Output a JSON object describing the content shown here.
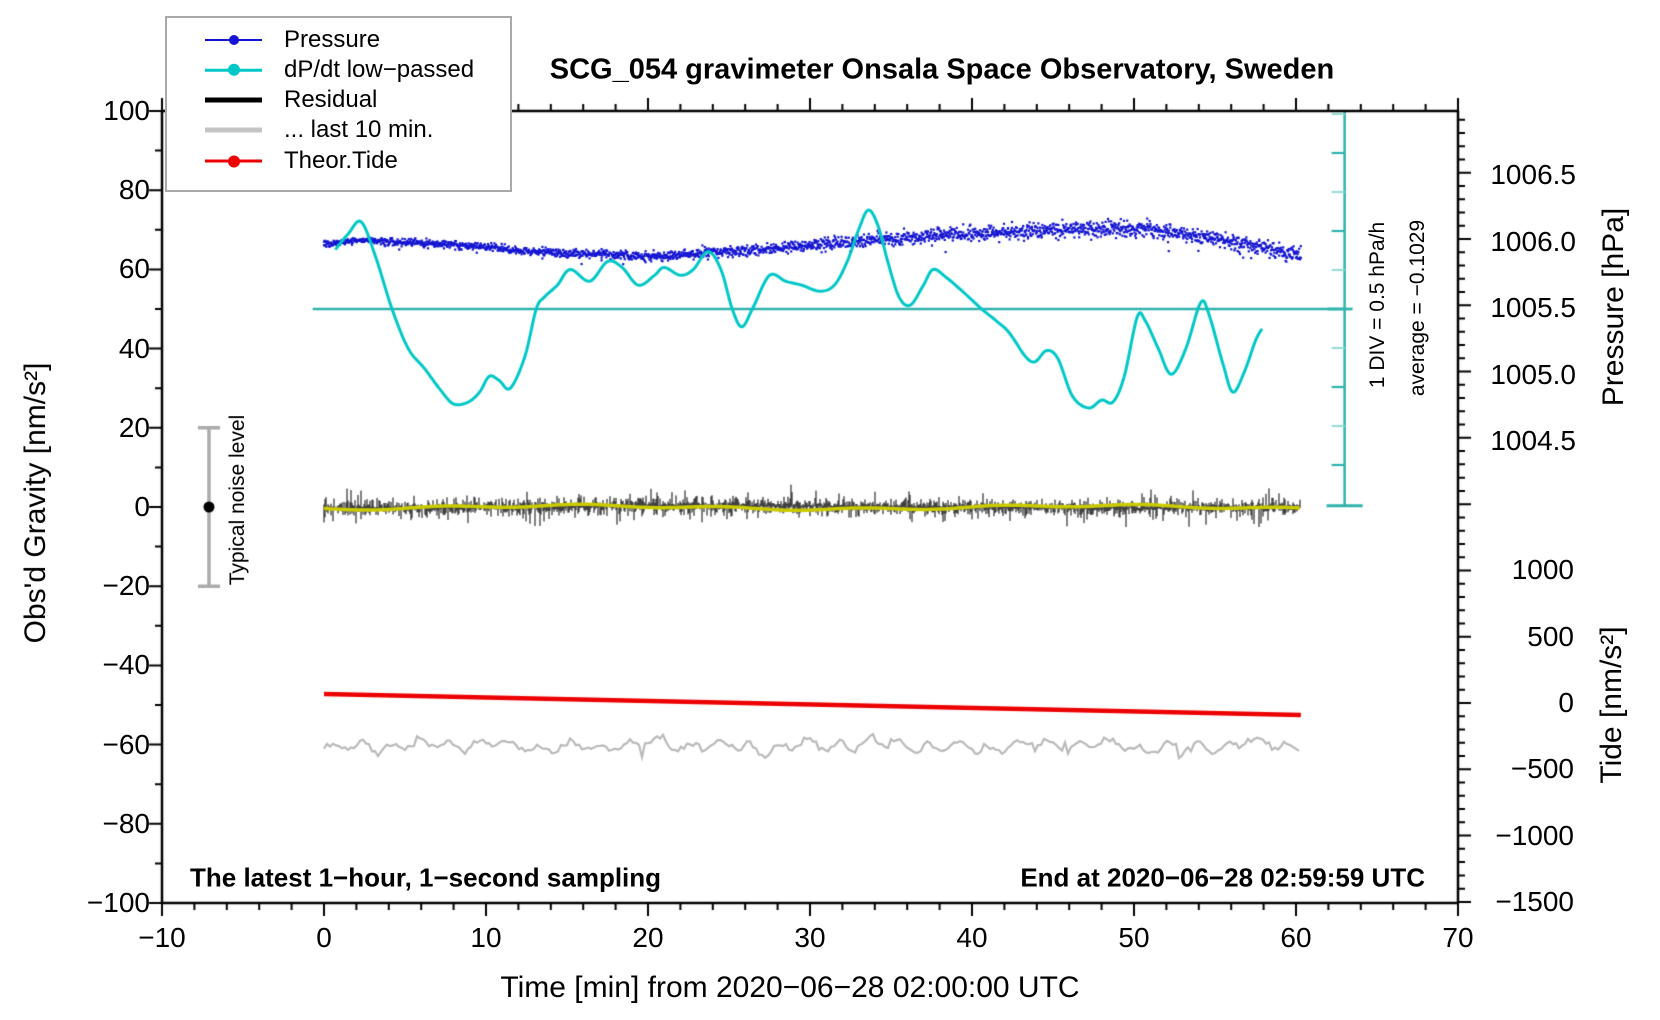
{
  "title": "SCG_054 gravimeter Onsala Space Observatory, Sweden",
  "legend": {
    "items": [
      {
        "label": "Pressure",
        "color": "#1414d2",
        "style": "line-dot",
        "line_width": 2,
        "dot_radius": 5
      },
      {
        "label": "dP/dt low−passed",
        "color": "#00c7c7",
        "style": "line-dot",
        "line_width": 2.5,
        "dot_radius": 6
      },
      {
        "label": "Residual",
        "color": "#000000",
        "style": "line",
        "line_width": 5,
        "dot_radius": 0
      },
      {
        "label": "... last 10 min.",
        "color": "#c4c4c4",
        "style": "line",
        "line_width": 5,
        "dot_radius": 0
      },
      {
        "label": "Theor.Tide",
        "color": "#ec0000",
        "style": "line-dot",
        "line_width": 3,
        "dot_radius": 6
      }
    ]
  },
  "annotations": {
    "noise_bar_label": "Typical noise level",
    "div_scale_label": "1 DIV = 0.5 hPa/h",
    "average_label": "average = −0.1029",
    "sampling_note": "The latest 1−hour, 1−second sampling",
    "end_time_note": "End at 2020−06−28 02:59:59 UTC"
  },
  "chart_data": {
    "type": "line",
    "title": "SCG_054 gravimeter Onsala Space Observatory, Sweden",
    "grid": false,
    "legend_position": "top-left",
    "x_axis": {
      "label": "Time [min] from 2020−06−28 02:00:00 UTC",
      "range": [
        -10,
        70
      ],
      "major_ticks": [
        -10,
        0,
        10,
        20,
        30,
        40,
        50,
        60,
        70
      ],
      "minor_step": 2
    },
    "y_left_axis": {
      "label": "Obs'd Gravity [nm/s²]",
      "range": [
        -100,
        100
      ],
      "major_ticks": [
        100,
        80,
        60,
        40,
        20,
        0,
        -20,
        -40,
        -60,
        -80,
        -100
      ],
      "minor_step": 10
    },
    "y_right_pressure_axis": {
      "label": "Pressure [hPa]",
      "tick_labels": [
        "1006.5",
        "1006.0",
        "1005.5",
        "1005.0",
        "1004.5"
      ],
      "tick_values": [
        1006.5,
        1006.0,
        1005.5,
        1005.0,
        1004.5
      ],
      "minor_step_hpa": 0.1,
      "map_to_gravity": {
        "gravity_at_1006_hpa": 67.0,
        "gravity_units_per_hpa": 33.55
      }
    },
    "y_right_tide_axis": {
      "label": "Tide [nm/s²]",
      "tick_values": [
        1000,
        500,
        0,
        -500,
        -1000,
        -1500
      ],
      "minor_step": 100,
      "map_to_gravity": {
        "gravity_at_zero_tide": -49.5,
        "gravity_units_per_tide_unit": 0.03348
      }
    },
    "div_scale": {
      "label": "1 DIV = 0.5 hPa/h",
      "average_label": "average = −0.1029",
      "average_hpa_per_h": -0.1029,
      "line_x_time_min": 63.0,
      "average_line_gravity": 50,
      "average_line_start_time_min": -0.7,
      "div_height_gravity_units": 9.85
    },
    "noise_bar": {
      "label": "Typical noise level",
      "x_time_min": -7.1,
      "center_gravity": 0,
      "half_range_gravity": 20
    },
    "series": {
      "pressure": {
        "name": "Pressure",
        "units": "hPa",
        "style": "noisy-scatter",
        "median_points": [
          [
            0,
            1005.98
          ],
          [
            1,
            1005.99
          ],
          [
            2,
            1006.01
          ],
          [
            3,
            1006.01
          ],
          [
            4,
            1006.0
          ],
          [
            6,
            1005.99
          ],
          [
            8,
            1005.98
          ],
          [
            10,
            1005.96
          ],
          [
            12,
            1005.93
          ],
          [
            14,
            1005.92
          ],
          [
            16,
            1005.91
          ],
          [
            18,
            1005.9
          ],
          [
            20,
            1005.89
          ],
          [
            22,
            1005.9
          ],
          [
            24,
            1005.92
          ],
          [
            26,
            1005.93
          ],
          [
            28,
            1005.95
          ],
          [
            30,
            1005.97
          ],
          [
            32,
            1005.99
          ],
          [
            34,
            1006.01
          ],
          [
            36,
            1006.03
          ],
          [
            38,
            1006.05
          ],
          [
            40,
            1006.06
          ],
          [
            42,
            1006.07
          ],
          [
            44,
            1006.08
          ],
          [
            46,
            1006.09
          ],
          [
            48,
            1006.1
          ],
          [
            50,
            1006.1
          ],
          [
            52,
            1006.08
          ],
          [
            54,
            1006.04
          ],
          [
            56,
            1006.0
          ],
          [
            57,
            1005.97
          ],
          [
            58,
            1005.95
          ],
          [
            59,
            1005.93
          ],
          [
            60.3,
            1005.9
          ]
        ],
        "noise_sigma_hpa": [
          [
            0,
            0.012
          ],
          [
            20,
            0.016
          ],
          [
            30,
            0.022
          ],
          [
            45,
            0.028
          ],
          [
            60.3,
            0.03
          ]
        ]
      },
      "dpdt_lowpassed": {
        "name": "dP/dt low−passed",
        "units": "gravity-scale (1 DIV = 0.5 hPa/h, average = -0.1029 hPa/h at level 50)",
        "points": [
          [
            0.7,
            65
          ],
          [
            1.5,
            69
          ],
          [
            2.3,
            72
          ],
          [
            3.2,
            63
          ],
          [
            4.2,
            50
          ],
          [
            5.2,
            40
          ],
          [
            6.2,
            35
          ],
          [
            7.2,
            29.5
          ],
          [
            8.0,
            26
          ],
          [
            8.9,
            26.5
          ],
          [
            9.6,
            29
          ],
          [
            10.2,
            33
          ],
          [
            10.8,
            32
          ],
          [
            11.5,
            30
          ],
          [
            12.4,
            38
          ],
          [
            13.1,
            50
          ],
          [
            13.6,
            53
          ],
          [
            14.4,
            56
          ],
          [
            15.2,
            60
          ],
          [
            16.4,
            57
          ],
          [
            17.5,
            62
          ],
          [
            18.4,
            60.5
          ],
          [
            19.4,
            56
          ],
          [
            20.4,
            58.5
          ],
          [
            21.0,
            60.5
          ],
          [
            22.0,
            58.5
          ],
          [
            22.8,
            60
          ],
          [
            23.7,
            64.5
          ],
          [
            24.5,
            60
          ],
          [
            25.2,
            50
          ],
          [
            25.8,
            45.5
          ],
          [
            26.5,
            50.5
          ],
          [
            27.5,
            58.5
          ],
          [
            28.5,
            57
          ],
          [
            29.5,
            56
          ],
          [
            30.6,
            54.5
          ],
          [
            31.5,
            56
          ],
          [
            32.3,
            62
          ],
          [
            33.0,
            70
          ],
          [
            33.6,
            75
          ],
          [
            34.2,
            71
          ],
          [
            34.8,
            62
          ],
          [
            35.5,
            53
          ],
          [
            36.2,
            51
          ],
          [
            37.0,
            56
          ],
          [
            37.6,
            60
          ],
          [
            38.4,
            58
          ],
          [
            39.4,
            54.5
          ],
          [
            40.6,
            50
          ],
          [
            41.5,
            47
          ],
          [
            42.3,
            44
          ],
          [
            43.3,
            38
          ],
          [
            43.9,
            36.7
          ],
          [
            44.6,
            39.5
          ],
          [
            45.3,
            37.5
          ],
          [
            46.2,
            28
          ],
          [
            47.2,
            25
          ],
          [
            48.0,
            27
          ],
          [
            48.7,
            26.5
          ],
          [
            49.4,
            33
          ],
          [
            50.2,
            48
          ],
          [
            50.7,
            47
          ],
          [
            51.5,
            40
          ],
          [
            52.3,
            33.5
          ],
          [
            53.2,
            40
          ],
          [
            54.1,
            51.5
          ],
          [
            54.6,
            49
          ],
          [
            55.5,
            36
          ],
          [
            56.1,
            29
          ],
          [
            56.8,
            34
          ],
          [
            57.5,
            42
          ],
          [
            57.9,
            45
          ]
        ]
      },
      "residual": {
        "name": "Residual",
        "units": "nm/s²",
        "style": "noisy-band",
        "center_gravity": 0,
        "typical_amplitude": 2,
        "spike_amplitude": 5.5,
        "x_range_min": [
          0,
          60.3
        ]
      },
      "residual_lowpass_yellow": {
        "name": "Residual low-passed (yellow overlay)",
        "units": "nm/s²",
        "center_gravity": 0,
        "amplitude": 0.8,
        "x_range_min": [
          0,
          60.3
        ]
      },
      "last_10_min": {
        "name": "... last 10 min.",
        "units": "nm/s² (offset for display)",
        "style": "noisy-line",
        "center_gravity": -60.3,
        "typical_amplitude": 1.8,
        "spike_amplitude": 3.5,
        "x_range_min": [
          0,
          60.3
        ]
      },
      "theor_tide": {
        "name": "Theor.Tide",
        "units": "nm/s² (Tide axis)",
        "points_tide": [
          [
            0,
            68
          ],
          [
            60.3,
            -91
          ]
        ]
      }
    }
  }
}
